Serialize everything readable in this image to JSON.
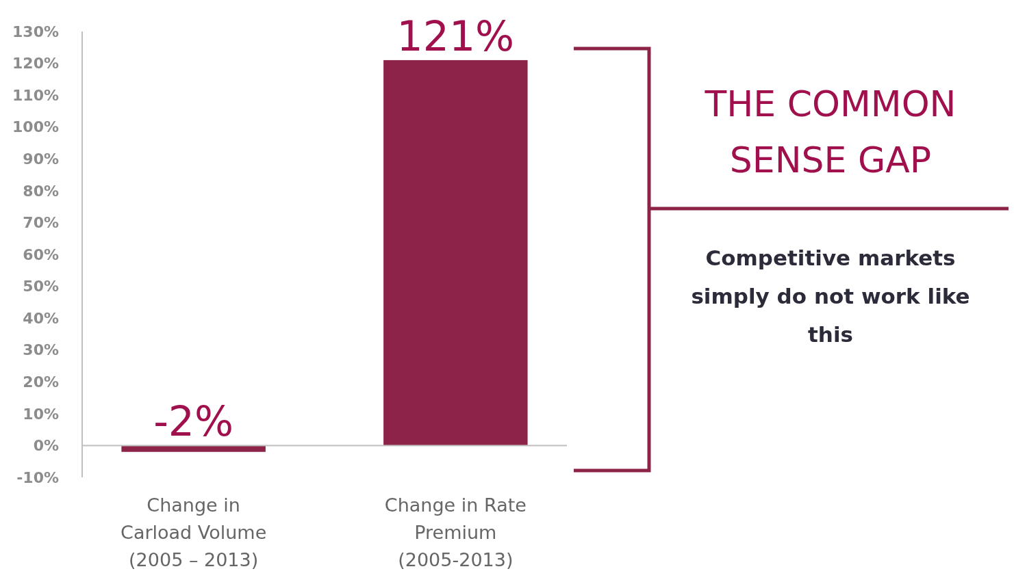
{
  "chart_data": {
    "type": "bar",
    "categories": [
      "Change in Carload Volume (2005 – 2013)",
      "Change in Rate Premium (2005-2013)"
    ],
    "values": [
      -2,
      121
    ],
    "color": "#8e2349",
    "value_labels": [
      "-2%",
      "121%"
    ],
    "ylim": [
      -10,
      130
    ],
    "yticks": [
      {
        "value": -10,
        "label": "-10%"
      },
      {
        "value": 0,
        "label": "0%"
      },
      {
        "value": 10,
        "label": "10%"
      },
      {
        "value": 20,
        "label": "20%"
      },
      {
        "value": 30,
        "label": "30%"
      },
      {
        "value": 40,
        "label": "40%"
      },
      {
        "value": 50,
        "label": "50%"
      },
      {
        "value": 60,
        "label": "60%"
      },
      {
        "value": 70,
        "label": "70%"
      },
      {
        "value": 80,
        "label": "80%"
      },
      {
        "value": 90,
        "label": "90%"
      },
      {
        "value": 100,
        "label": "100%"
      },
      {
        "value": 110,
        "label": "110%"
      },
      {
        "value": 120,
        "label": "120%"
      },
      {
        "value": 130,
        "label": "130%"
      }
    ],
    "annotations": [
      "THE COMMON SENSE GAP",
      "Competitive markets simply do not work like this"
    ]
  }
}
